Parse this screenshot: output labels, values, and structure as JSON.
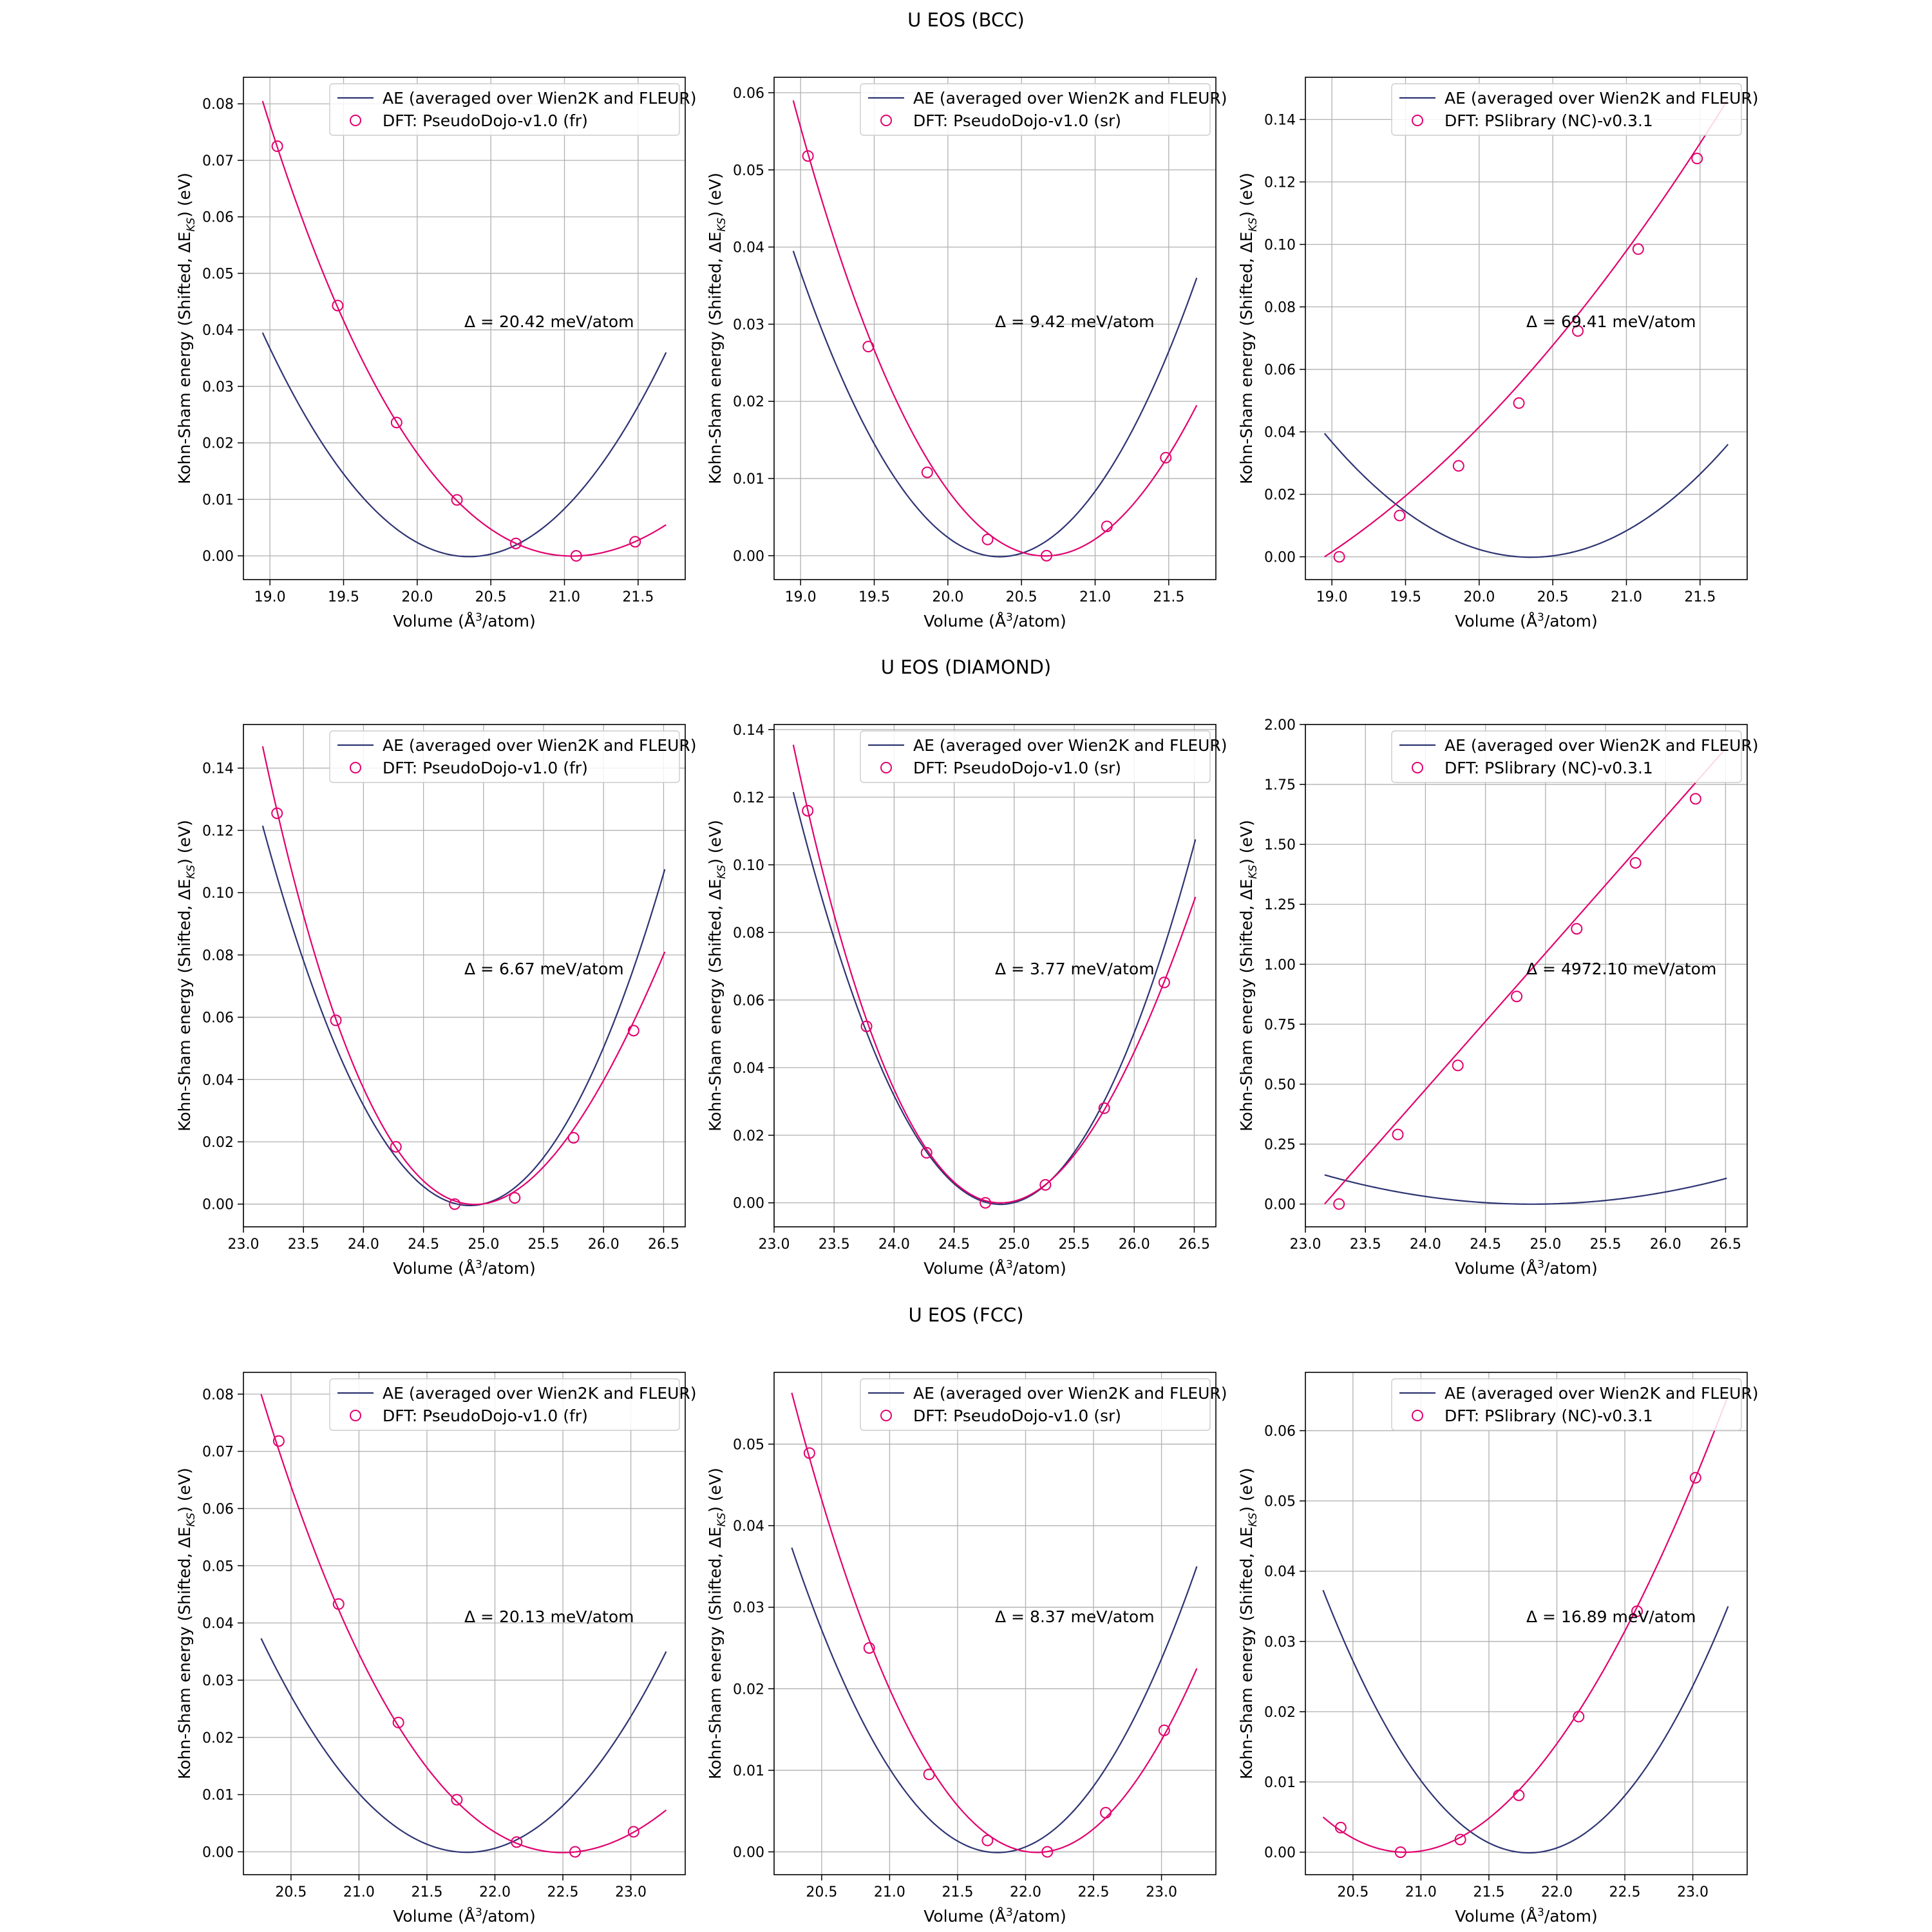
{
  "row_titles": [
    "U EOS (BCC)",
    "U EOS (DIAMOND)",
    "U EOS (FCC)"
  ],
  "colors": {
    "ae": "#2e3472",
    "dft": "#e2006e",
    "grid": "#b0b0b0",
    "axis": "#000000"
  },
  "chart_data": [
    {
      "type": "line",
      "row": 0,
      "col": 0,
      "xlabel": "Volume (Å³/atom)",
      "ylabel": "Kohn-Sham energy (Shifted, ΔE_KS) (eV)",
      "xlim": [
        18.82,
        21.82
      ],
      "ylim": [
        -0.0042,
        0.0847
      ],
      "xticks": [
        19.0,
        19.5,
        20.0,
        20.5,
        21.0,
        21.5
      ],
      "yticks": [
        0.0,
        0.01,
        0.02,
        0.03,
        0.04,
        0.05,
        0.06,
        0.07,
        0.08
      ],
      "ytick_decimals": 2,
      "legend": [
        "AE (averaged over Wien2K and FLEUR)",
        "DFT: PseudoDojo-v1.0 (fr)"
      ],
      "annotation": "Δ = 20.42 meV/atom",
      "ae_curve": {
        "x": [
          18.95,
          20.27,
          21.69
        ],
        "y": [
          0.0395,
          0.0,
          0.036
        ]
      },
      "dft_curve": {
        "x": [
          18.95,
          20.03,
          21.1,
          21.69
        ],
        "y": [
          0.0805,
          0.0171,
          0.0,
          0.0055
        ]
      },
      "dft_points": {
        "x": [
          19.05,
          19.46,
          19.86,
          20.27,
          20.67,
          21.08,
          21.48
        ],
        "y": [
          0.0725,
          0.0443,
          0.0236,
          0.0099,
          0.0022,
          0.0,
          0.0025
        ]
      }
    },
    {
      "type": "line",
      "row": 0,
      "col": 1,
      "xlabel": "Volume (Å³/atom)",
      "ylabel": "Kohn-Sham energy (Shifted, ΔE_KS) (eV)",
      "xlim": [
        18.82,
        21.82
      ],
      "ylim": [
        -0.0031,
        0.062
      ],
      "xticks": [
        19.0,
        19.5,
        20.0,
        20.5,
        21.0,
        21.5
      ],
      "yticks": [
        0.0,
        0.01,
        0.02,
        0.03,
        0.04,
        0.05,
        0.06
      ],
      "ytick_decimals": 2,
      "legend": [
        "AE (averaged over Wien2K and FLEUR)",
        "DFT: PseudoDojo-v1.0 (sr)"
      ],
      "annotation": "Δ = 9.42 meV/atom",
      "ae_curve": {
        "x": [
          18.95,
          20.27,
          21.69
        ],
        "y": [
          0.0395,
          0.0,
          0.036
        ]
      },
      "dft_curve": {
        "x": [
          18.95,
          19.93,
          20.62,
          21.69
        ],
        "y": [
          0.059,
          0.0104,
          0.0,
          0.0195
        ]
      },
      "dft_points": {
        "x": [
          19.05,
          19.46,
          19.86,
          20.27,
          20.67,
          21.08,
          21.48
        ],
        "y": [
          0.0518,
          0.0271,
          0.0108,
          0.0021,
          0.0,
          0.0038,
          0.0127
        ]
      }
    },
    {
      "type": "line",
      "row": 0,
      "col": 2,
      "xlabel": "Volume (Å³/atom)",
      "ylabel": "Kohn-Sham energy (Shifted, ΔE_KS) (eV)",
      "xlim": [
        18.82,
        21.82
      ],
      "ylim": [
        -0.0073,
        0.1535
      ],
      "xticks": [
        19.0,
        19.5,
        20.0,
        20.5,
        21.0,
        21.5
      ],
      "yticks": [
        0.0,
        0.02,
        0.04,
        0.06,
        0.08,
        0.1,
        0.12,
        0.14
      ],
      "ytick_decimals": 2,
      "legend": [
        "AE (averaged over Wien2K and FLEUR)",
        "DFT: PSlibrary (NC)-v0.3.1"
      ],
      "annotation": "Δ = 69.41 meV/atom",
      "ae_curve": {
        "x": [
          18.95,
          20.27,
          21.69
        ],
        "y": [
          0.0395,
          0.0,
          0.036
        ]
      },
      "dft_curve": {
        "x": [
          18.95,
          20.32,
          21.69
        ],
        "y": [
          0.0,
          0.0578,
          0.1465
        ]
      },
      "dft_points": {
        "x": [
          19.05,
          19.46,
          19.86,
          20.27,
          20.67,
          21.08,
          21.48
        ],
        "y": [
          0.0,
          0.0132,
          0.0291,
          0.0492,
          0.0723,
          0.0985,
          0.1275
        ]
      }
    },
    {
      "type": "line",
      "row": 1,
      "col": 0,
      "xlabel": "Volume (Å³/atom)",
      "ylabel": "Kohn-Sham energy (Shifted, ΔE_KS) (eV)",
      "xlim": [
        23.0,
        26.68
      ],
      "ylim": [
        -0.0073,
        0.154
      ],
      "xticks": [
        23.0,
        23.5,
        24.0,
        24.5,
        25.0,
        25.5,
        26.0,
        26.5
      ],
      "yticks": [
        0.0,
        0.02,
        0.04,
        0.06,
        0.08,
        0.1,
        0.12,
        0.14
      ],
      "ytick_decimals": 2,
      "legend": [
        "AE (averaged over Wien2K and FLEUR)",
        "DFT: PseudoDojo-v1.0 (fr)"
      ],
      "annotation": "Δ = 6.67 meV/atom",
      "ae_curve": {
        "x": [
          23.16,
          24.78,
          26.51
        ],
        "y": [
          0.1215,
          0.0,
          0.1075
        ]
      },
      "dft_curve": {
        "x": [
          23.16,
          24.24,
          24.98,
          26.51
        ],
        "y": [
          0.147,
          0.0199,
          0.0,
          0.081
        ]
      },
      "dft_points": {
        "x": [
          23.28,
          23.77,
          24.27,
          24.76,
          25.26,
          25.75,
          26.25
        ],
        "y": [
          0.1255,
          0.059,
          0.0184,
          0.0,
          0.002,
          0.0213,
          0.0557
        ]
      }
    },
    {
      "type": "line",
      "row": 1,
      "col": 1,
      "xlabel": "Volume (Å³/atom)",
      "ylabel": "Kohn-Sham energy (Shifted, ΔE_KS) (eV)",
      "xlim": [
        23.0,
        26.68
      ],
      "ylim": [
        -0.0071,
        0.1415
      ],
      "xticks": [
        23.0,
        23.5,
        24.0,
        24.5,
        25.0,
        25.5,
        26.0,
        26.5
      ],
      "yticks": [
        0.0,
        0.02,
        0.04,
        0.06,
        0.08,
        0.1,
        0.12,
        0.14
      ],
      "ytick_decimals": 2,
      "legend": [
        "AE (averaged over Wien2K and FLEUR)",
        "DFT: PseudoDojo-v1.0 (sr)"
      ],
      "annotation": "Δ = 3.77 meV/atom",
      "ae_curve": {
        "x": [
          23.16,
          24.78,
          26.51
        ],
        "y": [
          0.1215,
          0.0,
          0.1075
        ]
      },
      "dft_curve": {
        "x": [
          23.16,
          24.24,
          24.87,
          26.51
        ],
        "y": [
          0.1355,
          0.0175,
          0.0,
          0.0905
        ]
      },
      "dft_points": {
        "x": [
          23.28,
          23.77,
          24.27,
          24.76,
          25.26,
          25.75,
          26.25
        ],
        "y": [
          0.116,
          0.0522,
          0.0148,
          0.0,
          0.0053,
          0.028,
          0.0652
        ]
      }
    },
    {
      "type": "line",
      "row": 1,
      "col": 2,
      "xlabel": "Volume (Å³/atom)",
      "ylabel": "Kohn-Sham energy (Shifted, ΔE_KS) (eV)",
      "xlim": [
        23.0,
        26.68
      ],
      "ylim": [
        -0.095,
        2.0
      ],
      "xticks": [
        23.0,
        23.5,
        24.0,
        24.5,
        25.0,
        25.5,
        26.0,
        26.5
      ],
      "yticks": [
        0.0,
        0.25,
        0.5,
        0.75,
        1.0,
        1.25,
        1.5,
        1.75,
        2.0
      ],
      "ytick_decimals": 2,
      "legend": [
        "AE (averaged over Wien2K and FLEUR)",
        "DFT: PSlibrary (NC)-v0.3.1"
      ],
      "annotation": "Δ = 4972.10 meV/atom",
      "ae_curve": {
        "x": [
          23.16,
          24.78,
          26.51
        ],
        "y": [
          0.1215,
          0.0,
          0.1075
        ]
      },
      "dft_curve": {
        "x": [
          23.16,
          24.84,
          26.51
        ],
        "y": [
          0.0,
          0.955,
          1.905
        ]
      },
      "dft_points": {
        "x": [
          23.28,
          23.77,
          24.27,
          24.76,
          25.26,
          25.75,
          26.25
        ],
        "y": [
          0.0,
          0.29,
          0.578,
          0.866,
          1.148,
          1.423,
          1.69
        ]
      }
    },
    {
      "type": "line",
      "row": 2,
      "col": 0,
      "xlabel": "Volume (Å³/atom)",
      "ylabel": "Kohn-Sham energy (Shifted, ΔE_KS) (eV)",
      "xlim": [
        20.15,
        23.4
      ],
      "ylim": [
        -0.004,
        0.0838
      ],
      "xticks": [
        20.5,
        21.0,
        21.5,
        22.0,
        22.5,
        23.0
      ],
      "yticks": [
        0.0,
        0.01,
        0.02,
        0.03,
        0.04,
        0.05,
        0.06,
        0.07,
        0.08
      ],
      "ytick_decimals": 2,
      "legend": [
        "AE (averaged over Wien2K and FLEUR)",
        "DFT: PseudoDojo-v1.0 (fr)"
      ],
      "annotation": "Δ = 20.13 meV/atom",
      "ae_curve": {
        "x": [
          20.28,
          21.72,
          23.26
        ],
        "y": [
          0.0373,
          0.0,
          0.035
        ]
      },
      "dft_curve": {
        "x": [
          20.28,
          21.45,
          22.6,
          23.26
        ],
        "y": [
          0.08,
          0.0163,
          0.0,
          0.0073
        ]
      },
      "dft_points": {
        "x": [
          20.41,
          20.85,
          21.29,
          21.72,
          22.16,
          22.59,
          23.02
        ],
        "y": [
          0.0718,
          0.0433,
          0.0226,
          0.0091,
          0.0017,
          0.0,
          0.0035
        ]
      }
    },
    {
      "type": "line",
      "row": 2,
      "col": 1,
      "xlabel": "Volume (Å³/atom)",
      "ylabel": "Kohn-Sham energy (Shifted, ΔE_KS) (eV)",
      "xlim": [
        20.15,
        23.4
      ],
      "ylim": [
        -0.0028,
        0.0588
      ],
      "xticks": [
        20.5,
        21.0,
        21.5,
        22.0,
        22.5,
        23.0
      ],
      "yticks": [
        0.0,
        0.01,
        0.02,
        0.03,
        0.04,
        0.05
      ],
      "ytick_decimals": 2,
      "legend": [
        "AE (averaged over Wien2K and FLEUR)",
        "DFT: PseudoDojo-v1.0 (sr)"
      ],
      "annotation": "Δ = 8.37 meV/atom",
      "ae_curve": {
        "x": [
          20.28,
          21.72,
          23.26
        ],
        "y": [
          0.0373,
          0.0,
          0.035
        ]
      },
      "dft_curve": {
        "x": [
          20.28,
          21.29,
          22.02,
          23.26
        ],
        "y": [
          0.0563,
          0.0106,
          0.0,
          0.0225
        ]
      },
      "dft_points": {
        "x": [
          20.41,
          20.85,
          21.29,
          21.72,
          22.16,
          22.59,
          23.02
        ],
        "y": [
          0.0489,
          0.025,
          0.0095,
          0.0014,
          0.0,
          0.0048,
          0.0149
        ]
      }
    },
    {
      "type": "line",
      "row": 2,
      "col": 2,
      "xlabel": "Volume (Å³/atom)",
      "ylabel": "Kohn-Sham energy (Shifted, ΔE_KS) (eV)",
      "xlim": [
        20.15,
        23.4
      ],
      "ylim": [
        -0.0032,
        0.0683
      ],
      "xticks": [
        20.5,
        21.0,
        21.5,
        22.0,
        22.5,
        23.0
      ],
      "yticks": [
        0.0,
        0.01,
        0.02,
        0.03,
        0.04,
        0.05,
        0.06
      ],
      "ytick_decimals": 2,
      "legend": [
        "AE (averaged over Wien2K and FLEUR)",
        "DFT: PSlibrary (NC)-v0.3.1"
      ],
      "annotation": "Δ = 16.89 meV/atom",
      "ae_curve": {
        "x": [
          20.28,
          21.72,
          23.26
        ],
        "y": [
          0.0373,
          0.0,
          0.035
        ]
      },
      "dft_curve": {
        "x": [
          20.28,
          20.9,
          21.72,
          23.26
        ],
        "y": [
          0.005,
          0.0,
          0.0088,
          0.065
        ]
      },
      "dft_points": {
        "x": [
          20.41,
          20.85,
          21.29,
          21.72,
          22.16,
          22.59,
          23.02
        ],
        "y": [
          0.0035,
          0.0,
          0.0018,
          0.0081,
          0.0193,
          0.0343,
          0.0533
        ]
      }
    }
  ]
}
